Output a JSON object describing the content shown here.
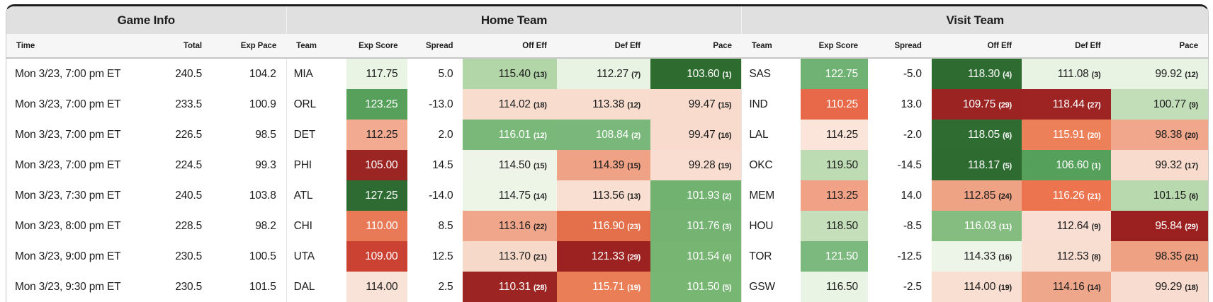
{
  "sections": {
    "game_info": "Game Info",
    "home": "Home Team",
    "visit": "Visit Team"
  },
  "columns": {
    "time": "Time",
    "total": "Total",
    "exp_pace": "Exp Pace",
    "team": "Team",
    "exp_score": "Exp Score",
    "spread": "Spread",
    "off_eff": "Off Eff",
    "def_eff": "Def Eff",
    "pace": "Pace"
  },
  "heat_palette": {
    "dark_green": "#2d6b31",
    "medium_green": "#72b270",
    "light_green": "#c2deb8",
    "pale_green": "#e9f3e3",
    "pale_red": "#f8dbcd",
    "salmon": "#efa285",
    "orange": "#ea7e57",
    "red": "#cc4232",
    "dark_red": "#9b2423"
  },
  "rows": [
    {
      "time": "Mon 3/23, 7:00 pm ET",
      "total": "240.5",
      "exp_pace": "104.2",
      "home": {
        "team": "MIA",
        "exp_score": {
          "v": "117.75",
          "bg": "#eaf4e5",
          "fg": "dark"
        },
        "spread": "5.0",
        "off_eff": {
          "v": "115.40",
          "r": "(13)",
          "bg": "#b3d6a9",
          "fg": "dark"
        },
        "def_eff": {
          "v": "112.27",
          "r": "(7)",
          "bg": "#e9f3e3",
          "fg": "dark"
        },
        "pace": {
          "v": "103.60",
          "r": "(1)",
          "bg": "#2e6b2f",
          "fg": "light"
        }
      },
      "visit": {
        "team": "SAS",
        "exp_score": {
          "v": "122.75",
          "bg": "#6fb274",
          "fg": "light"
        },
        "spread": "-5.0",
        "off_eff": {
          "v": "118.30",
          "r": "(4)",
          "bg": "#2d6b31",
          "fg": "light"
        },
        "def_eff": {
          "v": "111.08",
          "r": "(3)",
          "bg": "#e9f3e3",
          "fg": "dark"
        },
        "pace": {
          "v": "99.92",
          "r": "(12)",
          "bg": "#e9f3e3",
          "fg": "dark"
        }
      }
    },
    {
      "time": "Mon 3/23, 7:00 pm ET",
      "total": "233.5",
      "exp_pace": "100.9",
      "home": {
        "team": "ORL",
        "exp_score": {
          "v": "123.25",
          "bg": "#57a05c",
          "fg": "light"
        },
        "spread": "-13.0",
        "off_eff": {
          "v": "114.02",
          "r": "(18)",
          "bg": "#f8ddcf",
          "fg": "dark"
        },
        "def_eff": {
          "v": "113.38",
          "r": "(12)",
          "bg": "#f8ddcf",
          "fg": "dark"
        },
        "pace": {
          "v": "99.47",
          "r": "(15)",
          "bg": "#f8dbcd",
          "fg": "dark"
        }
      },
      "visit": {
        "team": "IND",
        "exp_score": {
          "v": "110.25",
          "bg": "#e8684a",
          "fg": "light"
        },
        "spread": "13.0",
        "off_eff": {
          "v": "109.75",
          "r": "(29)",
          "bg": "#9b2423",
          "fg": "light"
        },
        "def_eff": {
          "v": "118.44",
          "r": "(27)",
          "bg": "#9d2423",
          "fg": "light"
        },
        "pace": {
          "v": "100.77",
          "r": "(9)",
          "bg": "#c2deb8",
          "fg": "dark"
        }
      }
    },
    {
      "time": "Mon 3/23, 7:00 pm ET",
      "total": "226.5",
      "exp_pace": "98.5",
      "home": {
        "team": "DET",
        "exp_score": {
          "v": "112.25",
          "bg": "#f2ab90",
          "fg": "dark"
        },
        "spread": "2.0",
        "off_eff": {
          "v": "116.01",
          "r": "(12)",
          "bg": "#7ab879",
          "fg": "light"
        },
        "def_eff": {
          "v": "108.84",
          "r": "(2)",
          "bg": "#79b87a",
          "fg": "light"
        },
        "pace": {
          "v": "99.47",
          "r": "(16)",
          "bg": "#f8dbcd",
          "fg": "dark"
        }
      },
      "visit": {
        "team": "LAL",
        "exp_score": {
          "v": "114.25",
          "bg": "#fbe4da",
          "fg": "dark"
        },
        "spread": "-2.0",
        "off_eff": {
          "v": "118.05",
          "r": "(6)",
          "bg": "#2e6c32",
          "fg": "light"
        },
        "def_eff": {
          "v": "115.91",
          "r": "(20)",
          "bg": "#ec8059",
          "fg": "light"
        },
        "pace": {
          "v": "98.38",
          "r": "(20)",
          "bg": "#f0a78c",
          "fg": "dark"
        }
      }
    },
    {
      "time": "Mon 3/23, 7:00 pm ET",
      "total": "224.5",
      "exp_pace": "99.3",
      "home": {
        "team": "PHI",
        "exp_score": {
          "v": "105.00",
          "bg": "#9b2523",
          "fg": "light"
        },
        "spread": "14.5",
        "off_eff": {
          "v": "114.50",
          "r": "(15)",
          "bg": "#eef5e8",
          "fg": "dark"
        },
        "def_eff": {
          "v": "114.39",
          "r": "(15)",
          "bg": "#efa285",
          "fg": "dark"
        },
        "pace": {
          "v": "99.28",
          "r": "(19)",
          "bg": "#f9ddd0",
          "fg": "dark"
        }
      },
      "visit": {
        "team": "OKC",
        "exp_score": {
          "v": "119.50",
          "bg": "#bedcb4",
          "fg": "dark"
        },
        "spread": "-14.5",
        "off_eff": {
          "v": "118.17",
          "r": "(5)",
          "bg": "#2d6b31",
          "fg": "light"
        },
        "def_eff": {
          "v": "106.60",
          "r": "(1)",
          "bg": "#55a05b",
          "fg": "light"
        },
        "pace": {
          "v": "99.32",
          "r": "(17)",
          "bg": "#f8dbcd",
          "fg": "dark"
        }
      }
    },
    {
      "time": "Mon 3/23, 7:30 pm ET",
      "total": "240.5",
      "exp_pace": "103.8",
      "home": {
        "team": "ATL",
        "exp_score": {
          "v": "127.25",
          "bg": "#2e6b33",
          "fg": "light"
        },
        "spread": "-14.0",
        "off_eff": {
          "v": "114.75",
          "r": "(14)",
          "bg": "#edf5e7",
          "fg": "dark"
        },
        "def_eff": {
          "v": "113.56",
          "r": "(13)",
          "bg": "#f9ded2",
          "fg": "dark"
        },
        "pace": {
          "v": "101.93",
          "r": "(2)",
          "bg": "#72b270",
          "fg": "light"
        }
      },
      "visit": {
        "team": "MEM",
        "exp_score": {
          "v": "113.25",
          "bg": "#f0a186",
          "fg": "dark"
        },
        "spread": "14.0",
        "off_eff": {
          "v": "112.85",
          "r": "(24)",
          "bg": "#efa385",
          "fg": "dark"
        },
        "def_eff": {
          "v": "116.26",
          "r": "(21)",
          "bg": "#ec7550",
          "fg": "light"
        },
        "pace": {
          "v": "101.15",
          "r": "(6)",
          "bg": "#b8d8ae",
          "fg": "dark"
        }
      }
    },
    {
      "time": "Mon 3/23, 8:00 pm ET",
      "total": "228.5",
      "exp_pace": "98.2",
      "home": {
        "team": "CHI",
        "exp_score": {
          "v": "110.00",
          "bg": "#e97a58",
          "fg": "light"
        },
        "spread": "8.5",
        "off_eff": {
          "v": "113.16",
          "r": "(22)",
          "bg": "#efa68b",
          "fg": "dark"
        },
        "def_eff": {
          "v": "116.90",
          "r": "(23)",
          "bg": "#e4704b",
          "fg": "light"
        },
        "pace": {
          "v": "101.76",
          "r": "(3)",
          "bg": "#74b371",
          "fg": "light"
        }
      },
      "visit": {
        "team": "HOU",
        "exp_score": {
          "v": "118.50",
          "bg": "#c4dfba",
          "fg": "dark"
        },
        "spread": "-8.5",
        "off_eff": {
          "v": "116.03",
          "r": "(11)",
          "bg": "#85bd80",
          "fg": "light"
        },
        "def_eff": {
          "v": "112.64",
          "r": "(9)",
          "bg": "#f9ded3",
          "fg": "dark"
        },
        "pace": {
          "v": "95.84",
          "r": "(29)",
          "bg": "#9b2120",
          "fg": "light"
        }
      }
    },
    {
      "time": "Mon 3/23, 9:00 pm ET",
      "total": "230.5",
      "exp_pace": "100.5",
      "home": {
        "team": "UTA",
        "exp_score": {
          "v": "109.00",
          "bg": "#cc4232",
          "fg": "light"
        },
        "spread": "12.5",
        "off_eff": {
          "v": "113.70",
          "r": "(21)",
          "bg": "#f7d9c9",
          "fg": "dark"
        },
        "def_eff": {
          "v": "121.33",
          "r": "(29)",
          "bg": "#9b2220",
          "fg": "light"
        },
        "pace": {
          "v": "101.54",
          "r": "(4)",
          "bg": "#77b573",
          "fg": "light"
        }
      },
      "visit": {
        "team": "TOR",
        "exp_score": {
          "v": "121.50",
          "bg": "#7cb97e",
          "fg": "light"
        },
        "spread": "-12.5",
        "off_eff": {
          "v": "114.33",
          "r": "(16)",
          "bg": "#edf5e8",
          "fg": "dark"
        },
        "def_eff": {
          "v": "112.53",
          "r": "(8)",
          "bg": "#f8ddd1",
          "fg": "dark"
        },
        "pace": {
          "v": "98.35",
          "r": "(21)",
          "bg": "#efa183",
          "fg": "dark"
        }
      }
    },
    {
      "time": "Mon 3/23, 9:30 pm ET",
      "total": "230.5",
      "exp_pace": "101.5",
      "home": {
        "team": "DAL",
        "exp_score": {
          "v": "114.00",
          "bg": "#f9e2d8",
          "fg": "dark"
        },
        "spread": "2.5",
        "off_eff": {
          "v": "110.31",
          "r": "(28)",
          "bg": "#9c2523",
          "fg": "light"
        },
        "def_eff": {
          "v": "115.71",
          "r": "(19)",
          "bg": "#ea7e57",
          "fg": "light"
        },
        "pace": {
          "v": "101.50",
          "r": "(5)",
          "bg": "#78b674",
          "fg": "light"
        }
      },
      "visit": {
        "team": "GSW",
        "exp_score": {
          "v": "116.50",
          "bg": "#e9f4e4",
          "fg": "dark"
        },
        "spread": "-2.5",
        "off_eff": {
          "v": "114.00",
          "r": "(19)",
          "bg": "#f9ded2",
          "fg": "dark"
        },
        "def_eff": {
          "v": "114.16",
          "r": "(14)",
          "bg": "#efa78c",
          "fg": "dark"
        },
        "pace": {
          "v": "99.29",
          "r": "(18)",
          "bg": "#f8dccf",
          "fg": "dark"
        }
      }
    }
  ]
}
